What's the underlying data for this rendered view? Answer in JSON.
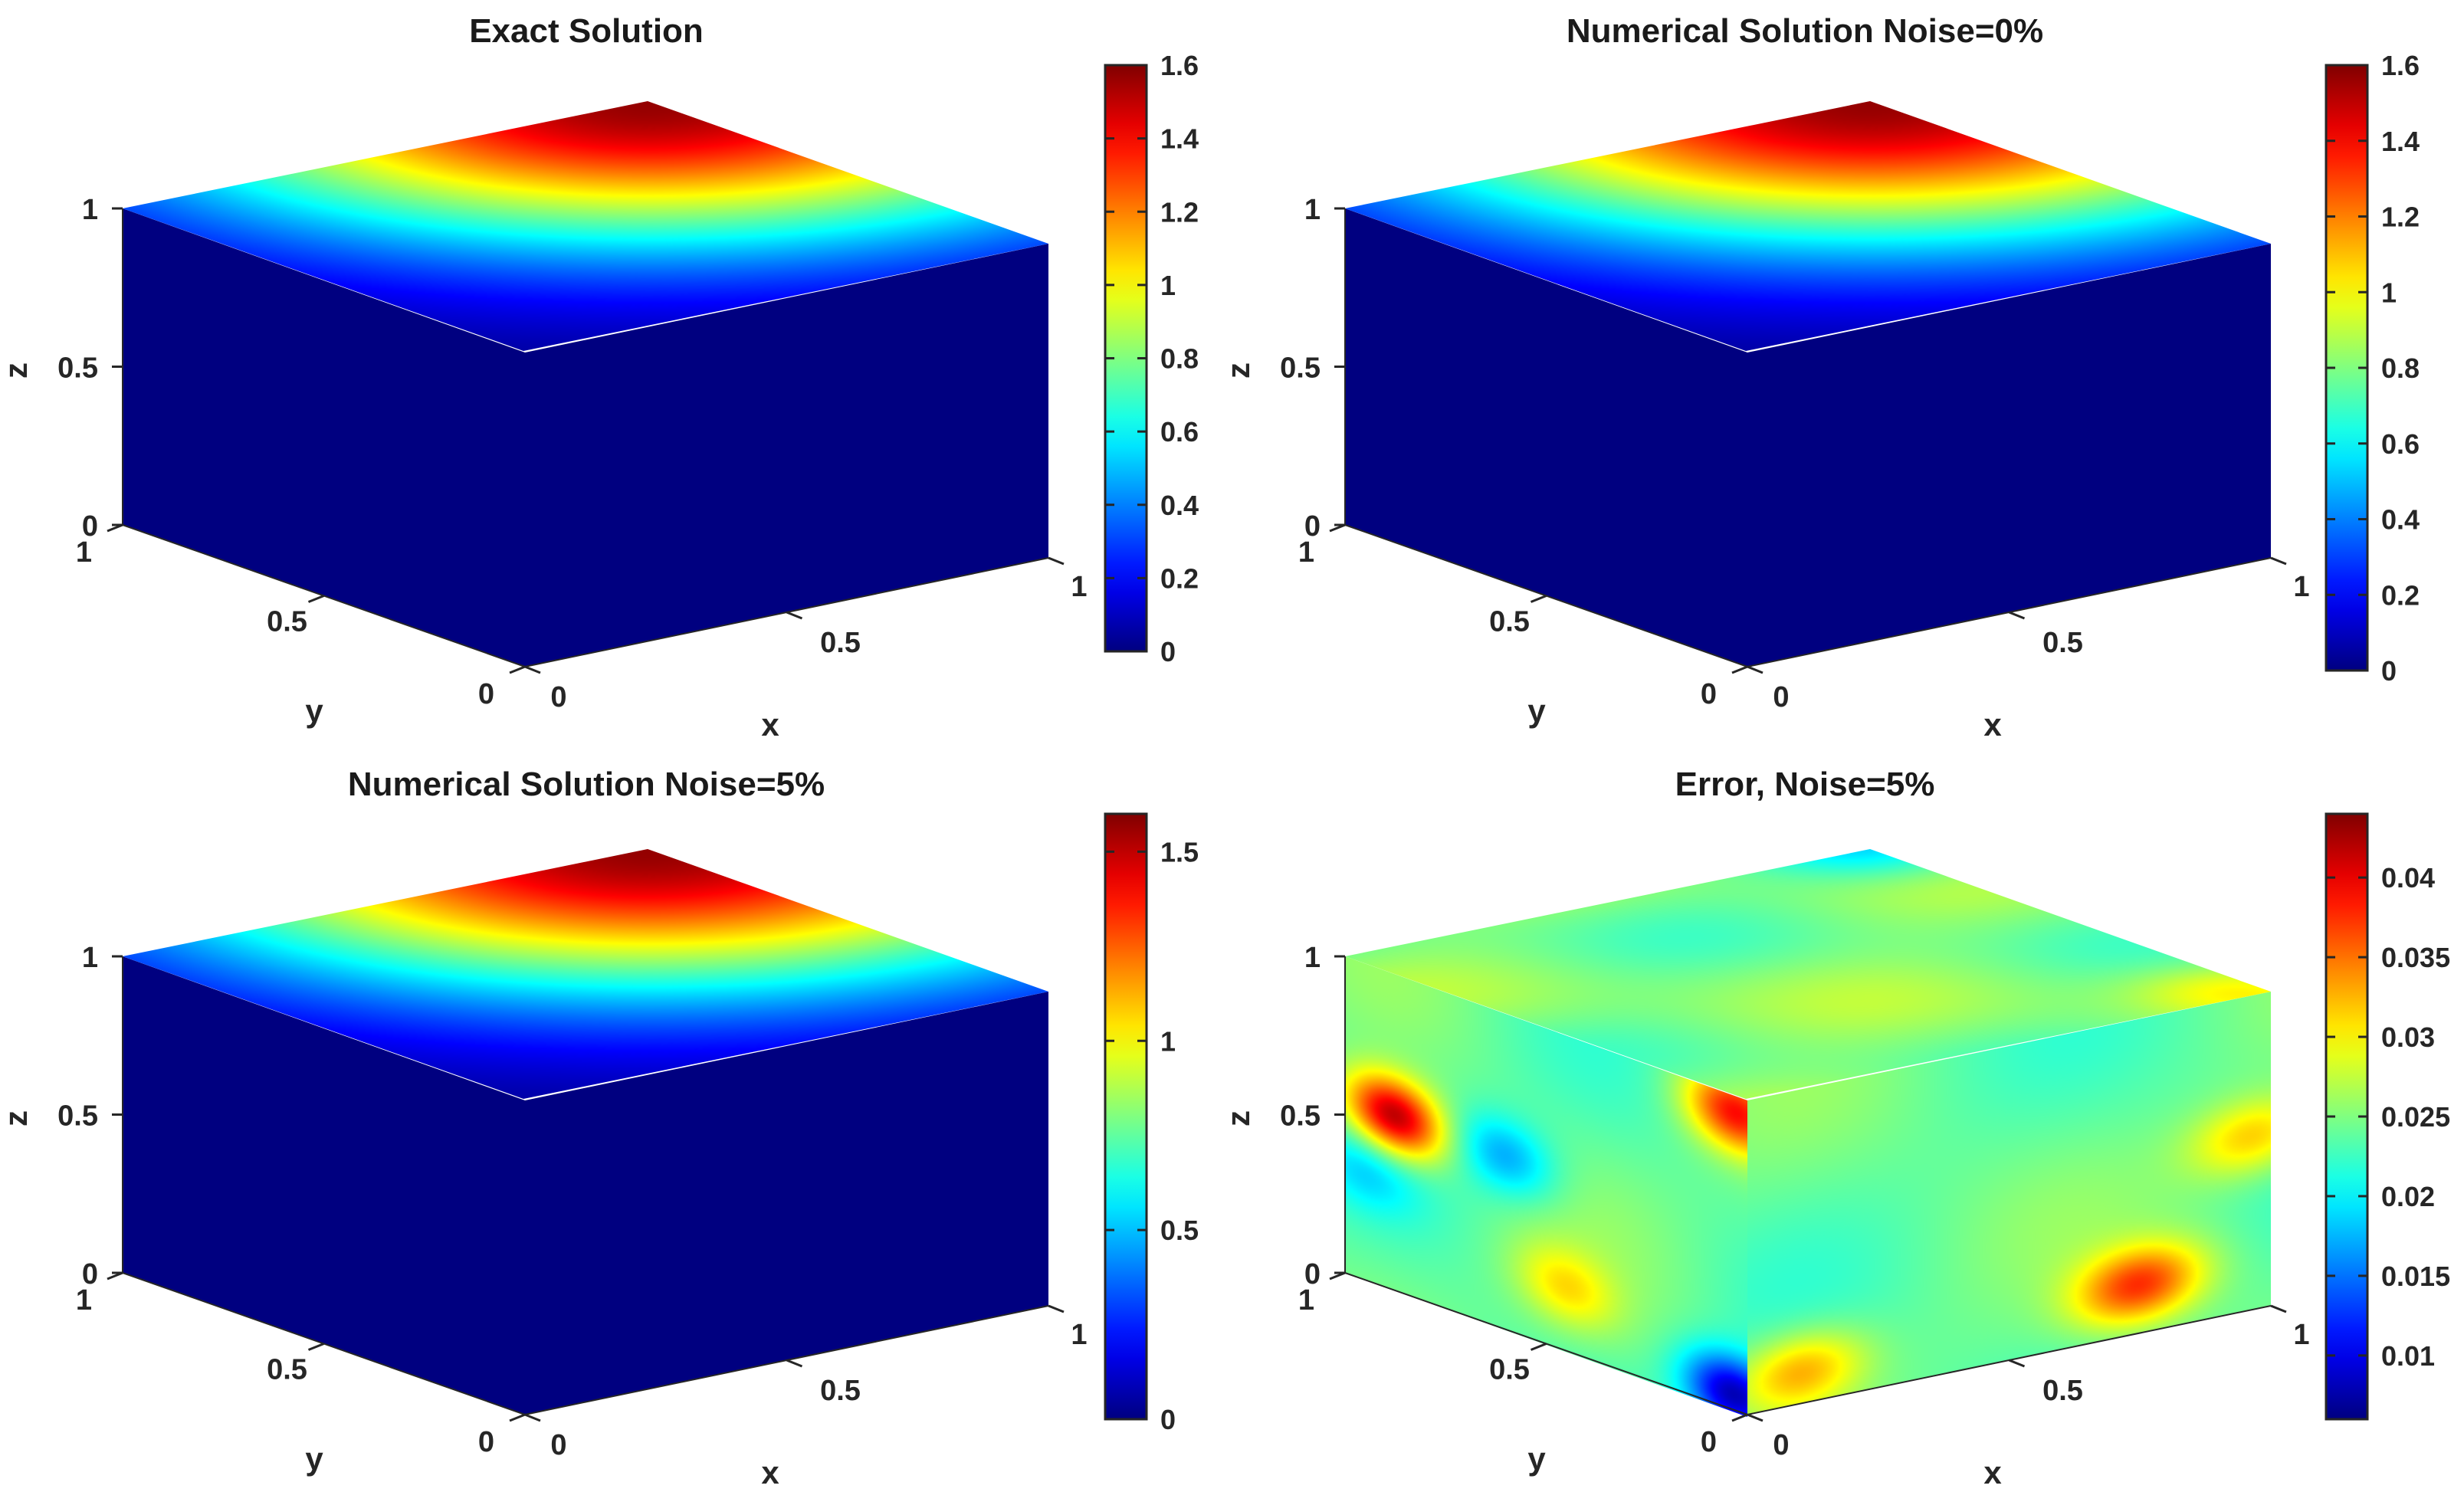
{
  "chart_data": [
    {
      "type": "heatmap",
      "title": "Exact Solution",
      "xlabel": "x",
      "ylabel": "y",
      "zlabel": "z",
      "x_ticks": [
        "0",
        "0.5",
        "1"
      ],
      "y_ticks": [
        "0",
        "0.5",
        "1"
      ],
      "z_ticks": [
        "0",
        "0.5",
        "1"
      ],
      "colorbar": {
        "min": 0,
        "max": 1.6,
        "ticks": [
          "0",
          "0.2",
          "0.4",
          "0.6",
          "0.8",
          "1",
          "1.2",
          "1.4",
          "1.6"
        ]
      },
      "field": "smooth",
      "colormap": "jet",
      "top_face_max": 1.6,
      "side_faces_value": 0
    },
    {
      "type": "heatmap",
      "title": "Numerical Solution Noise=0%",
      "xlabel": "x",
      "ylabel": "y",
      "zlabel": "z",
      "x_ticks": [
        "0",
        "0.5",
        "1"
      ],
      "y_ticks": [
        "0",
        "0.5",
        "1"
      ],
      "z_ticks": [
        "0",
        "0.5",
        "1"
      ],
      "colorbar": {
        "min": 0,
        "max": 1.6,
        "ticks": [
          "0",
          "0.2",
          "0.4",
          "0.6",
          "0.8",
          "1",
          "1.2",
          "1.4",
          "1.6"
        ]
      },
      "field": "smooth",
      "colormap": "jet",
      "top_face_max": 1.6,
      "side_faces_value": 0
    },
    {
      "type": "heatmap",
      "title": "Numerical Solution Noise=5%",
      "xlabel": "x",
      "ylabel": "y",
      "zlabel": "z",
      "x_ticks": [
        "0",
        "0.5",
        "1"
      ],
      "y_ticks": [
        "0",
        "0.5",
        "1"
      ],
      "z_ticks": [
        "0",
        "0.5",
        "1"
      ],
      "colorbar": {
        "min": 0,
        "max": 1.6,
        "ticks": [
          "0",
          "0.5",
          "1",
          "1.5"
        ]
      },
      "field": "smooth",
      "colormap": "jet",
      "top_face_max": 1.6,
      "side_faces_value": 0
    },
    {
      "type": "heatmap",
      "title": "Error, Noise=5%",
      "xlabel": "x",
      "ylabel": "y",
      "zlabel": "z",
      "x_ticks": [
        "0",
        "0.5",
        "1"
      ],
      "y_ticks": [
        "0",
        "0.5",
        "1"
      ],
      "z_ticks": [
        "0",
        "0.5",
        "1"
      ],
      "colorbar": {
        "min": 0.006,
        "max": 0.044,
        "ticks": [
          "0.01",
          "0.015",
          "0.02",
          "0.025",
          "0.03",
          "0.035",
          "0.04"
        ]
      },
      "field": "error",
      "colormap": "jet",
      "hotspots": [
        {
          "face": "left",
          "u": 0.97,
          "v": 0.95,
          "value": 0.038
        },
        {
          "face": "left",
          "u": 0.4,
          "v": 0.55,
          "value": 0.017
        },
        {
          "face": "left",
          "u": 0.97,
          "v": 0.05,
          "value": 0.008
        },
        {
          "face": "left",
          "u": 0.05,
          "v": 0.35,
          "value": 0.02
        },
        {
          "face": "left",
          "u": 0.55,
          "v": 0.2,
          "value": 0.03
        },
        {
          "face": "left",
          "u": 0.12,
          "v": 0.55,
          "value": 0.043
        },
        {
          "face": "right",
          "u": 0.75,
          "v": 0.15,
          "value": 0.037
        },
        {
          "face": "right",
          "u": 0.1,
          "v": 0.1,
          "value": 0.033
        },
        {
          "face": "right",
          "u": 0.97,
          "v": 0.55,
          "value": 0.032
        },
        {
          "face": "top",
          "u": 0.05,
          "v": 0.9,
          "value": 0.02
        }
      ]
    }
  ]
}
